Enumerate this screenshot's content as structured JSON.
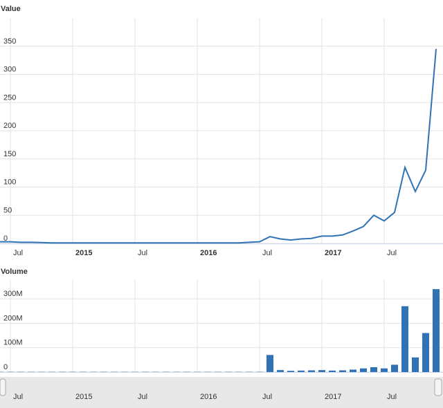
{
  "chart_data": [
    {
      "type": "line",
      "title": "Value",
      "color": "#2f72b5",
      "grid": true,
      "xlim": [
        "2014-06",
        "2017-12"
      ],
      "x": [
        "2014-06",
        "2014-07",
        "2014-08",
        "2014-09",
        "2014-10",
        "2014-11",
        "2014-12",
        "2015-01",
        "2015-02",
        "2015-03",
        "2015-04",
        "2015-05",
        "2015-06",
        "2015-07",
        "2015-08",
        "2015-09",
        "2015-10",
        "2015-11",
        "2015-12",
        "2016-01",
        "2016-02",
        "2016-03",
        "2016-04",
        "2016-05",
        "2016-06",
        "2016-07",
        "2016-08",
        "2016-09",
        "2016-10",
        "2016-11",
        "2016-12",
        "2017-01",
        "2017-02",
        "2017-03",
        "2017-04",
        "2017-05",
        "2017-06",
        "2017-07",
        "2017-08",
        "2017-09",
        "2017-10",
        "2017-11",
        "2017-12"
      ],
      "values": [
        3,
        3,
        2,
        2,
        1.5,
        1,
        1,
        1,
        1,
        1,
        1,
        1,
        1,
        1,
        1,
        1,
        1,
        1,
        1,
        1,
        1,
        1,
        1,
        1,
        2,
        3,
        12,
        8,
        6,
        8,
        9,
        13,
        13,
        15,
        22,
        30,
        50,
        40,
        55,
        135,
        92,
        130,
        345
      ],
      "xticks": [
        {
          "value": "2014-07",
          "label": "Jul"
        },
        {
          "value": "2015-01",
          "label": "2015"
        },
        {
          "value": "2015-07",
          "label": "Jul"
        },
        {
          "value": "2016-01",
          "label": "2016"
        },
        {
          "value": "2016-07",
          "label": "Jul"
        },
        {
          "value": "2017-01",
          "label": "2017"
        },
        {
          "value": "2017-07",
          "label": "Jul"
        }
      ],
      "ylim": [
        0,
        400
      ],
      "yticks": [
        0,
        50,
        100,
        150,
        200,
        250,
        300,
        350
      ]
    },
    {
      "type": "bar",
      "title": "Volume",
      "color": "#2f72b5",
      "grid": true,
      "xlim": [
        "2014-06",
        "2017-12"
      ],
      "x": [
        "2014-06",
        "2014-07",
        "2014-08",
        "2014-09",
        "2014-10",
        "2014-11",
        "2014-12",
        "2015-01",
        "2015-02",
        "2015-03",
        "2015-04",
        "2015-05",
        "2015-06",
        "2015-07",
        "2015-08",
        "2015-09",
        "2015-10",
        "2015-11",
        "2015-12",
        "2016-01",
        "2016-02",
        "2016-03",
        "2016-04",
        "2016-05",
        "2016-06",
        "2016-07",
        "2016-08",
        "2016-09",
        "2016-10",
        "2016-11",
        "2016-12",
        "2017-01",
        "2017-02",
        "2017-03",
        "2017-04",
        "2017-05",
        "2017-06",
        "2017-07",
        "2017-08",
        "2017-09",
        "2017-10",
        "2017-11",
        "2017-12"
      ],
      "values": [
        1000000,
        1000000,
        1000000,
        1000000,
        1000000,
        1000000,
        1000000,
        1000000,
        1000000,
        1000000,
        1000000,
        1000000,
        1000000,
        1000000,
        1000000,
        1000000,
        1000000,
        1000000,
        1000000,
        1000000,
        1000000,
        1000000,
        1000000,
        1000000,
        1000000,
        1000000,
        70000000,
        8000000,
        5000000,
        6000000,
        7000000,
        8000000,
        6000000,
        7000000,
        10000000,
        15000000,
        20000000,
        15000000,
        30000000,
        270000000,
        60000000,
        160000000,
        340000000
      ],
      "xticks": [
        {
          "value": "2014-07",
          "label": "Jul"
        },
        {
          "value": "2015-01",
          "label": "2015"
        },
        {
          "value": "2015-07",
          "label": "Jul"
        },
        {
          "value": "2016-01",
          "label": "2016"
        },
        {
          "value": "2016-07",
          "label": "Jul"
        },
        {
          "value": "2017-01",
          "label": "2017"
        },
        {
          "value": "2017-07",
          "label": "Jul"
        }
      ],
      "ylim": [
        0,
        380000000
      ],
      "yticks": [
        0,
        {
          "value": 100000000,
          "label": "100M"
        },
        {
          "value": 200000000,
          "label": "200M"
        },
        {
          "value": 300000000,
          "label": "300M"
        }
      ]
    }
  ]
}
